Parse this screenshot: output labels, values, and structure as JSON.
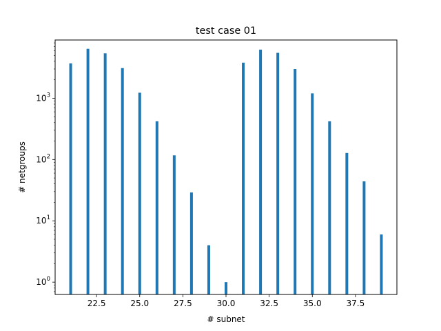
{
  "chart_data": {
    "type": "bar",
    "title": "test case 01",
    "xlabel": "# subnet",
    "ylabel": "# netgroups",
    "yscale": "log",
    "xlim": [
      20.1,
      39.9
    ],
    "ylim": [
      0.63,
      8900
    ],
    "grid": false,
    "bar_color": "#1f77b4",
    "x": [
      21,
      22,
      23,
      24,
      25,
      26,
      27,
      28,
      29,
      30,
      31,
      32,
      33,
      34,
      35,
      36,
      37,
      38,
      39
    ],
    "values": [
      3700,
      6400,
      5400,
      3100,
      1230,
      420,
      117,
      29,
      4,
      1,
      3800,
      6200,
      5500,
      3000,
      1200,
      420,
      128,
      44,
      6
    ],
    "x_ticks": [
      {
        "value": 22.5,
        "label": "22.5"
      },
      {
        "value": 25.0,
        "label": "25.0"
      },
      {
        "value": 27.5,
        "label": "27.5"
      },
      {
        "value": 30.0,
        "label": "30.0"
      },
      {
        "value": 32.5,
        "label": "32.5"
      },
      {
        "value": 35.0,
        "label": "35.0"
      },
      {
        "value": 37.5,
        "label": "37.5"
      }
    ],
    "y_ticks": [
      {
        "value": 1,
        "base": "10",
        "exp": "0"
      },
      {
        "value": 10,
        "base": "10",
        "exp": "1"
      },
      {
        "value": 100,
        "base": "10",
        "exp": "2"
      },
      {
        "value": 1000,
        "base": "10",
        "exp": "3"
      }
    ]
  }
}
